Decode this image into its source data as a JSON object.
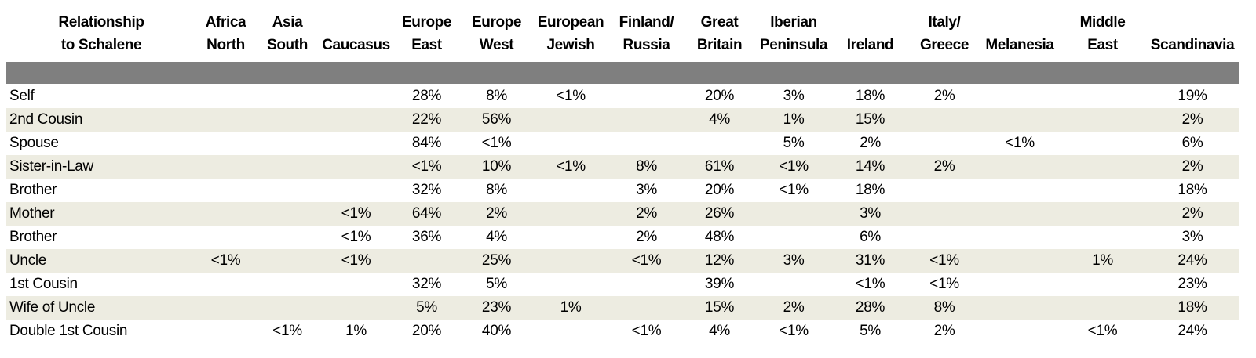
{
  "chart_data": {
    "type": "table",
    "title": "",
    "corner_header": [
      "Relationship",
      "to Schalene"
    ],
    "columns": [
      {
        "lines": [
          "Africa",
          "North"
        ]
      },
      {
        "lines": [
          "Asia",
          "South"
        ]
      },
      {
        "lines": [
          "Caucasus"
        ]
      },
      {
        "lines": [
          "Europe",
          "East"
        ]
      },
      {
        "lines": [
          "Europe",
          "West"
        ]
      },
      {
        "lines": [
          "European",
          "Jewish"
        ]
      },
      {
        "lines": [
          "Finland/",
          "Russia"
        ]
      },
      {
        "lines": [
          "Great",
          "Britain"
        ]
      },
      {
        "lines": [
          "Iberian",
          "Peninsula"
        ]
      },
      {
        "lines": [
          "Ireland"
        ]
      },
      {
        "lines": [
          "Italy/",
          "Greece"
        ]
      },
      {
        "lines": [
          "Melanesia"
        ]
      },
      {
        "lines": [
          "Middle",
          "East"
        ]
      },
      {
        "lines": [
          "Scandinavia"
        ]
      }
    ],
    "rows": [
      {
        "label": "Self",
        "values": [
          "",
          "",
          "",
          "28%",
          "8%",
          "<1%",
          "",
          "20%",
          "3%",
          "18%",
          "2%",
          "",
          "",
          "19%"
        ]
      },
      {
        "label": "2nd Cousin",
        "values": [
          "",
          "",
          "",
          "22%",
          "56%",
          "",
          "",
          "4%",
          "1%",
          "15%",
          "",
          "",
          "",
          "2%"
        ]
      },
      {
        "label": "Spouse",
        "values": [
          "",
          "",
          "",
          "84%",
          "<1%",
          "",
          "",
          "",
          "5%",
          "2%",
          "",
          "<1%",
          "",
          "6%"
        ]
      },
      {
        "label": "Sister-in-Law",
        "values": [
          "",
          "",
          "",
          "<1%",
          "10%",
          "<1%",
          "8%",
          "61%",
          "<1%",
          "14%",
          "2%",
          "",
          "",
          "2%"
        ]
      },
      {
        "label": "Brother",
        "values": [
          "",
          "",
          "",
          "32%",
          "8%",
          "",
          "3%",
          "20%",
          "<1%",
          "18%",
          "",
          "",
          "",
          "18%"
        ]
      },
      {
        "label": "Mother",
        "values": [
          "",
          "",
          "<1%",
          "64%",
          "2%",
          "",
          "2%",
          "26%",
          "",
          "3%",
          "",
          "",
          "",
          "2%"
        ]
      },
      {
        "label": "Brother",
        "values": [
          "",
          "",
          "<1%",
          "36%",
          "4%",
          "",
          "2%",
          "48%",
          "",
          "6%",
          "",
          "",
          "",
          "3%"
        ]
      },
      {
        "label": "Uncle",
        "values": [
          "<1%",
          "",
          "<1%",
          "",
          "25%",
          "",
          "<1%",
          "12%",
          "3%",
          "31%",
          "<1%",
          "",
          "1%",
          "24%"
        ]
      },
      {
        "label": "1st Cousin",
        "values": [
          "",
          "",
          "",
          "32%",
          "5%",
          "",
          "",
          "39%",
          "",
          "<1%",
          "<1%",
          "",
          "",
          "23%"
        ]
      },
      {
        "label": "Wife of Uncle",
        "values": [
          "",
          "",
          "",
          "5%",
          "23%",
          "1%",
          "",
          "15%",
          "2%",
          "28%",
          "8%",
          "",
          "",
          "18%"
        ]
      },
      {
        "label": "Double 1st Cousin",
        "values": [
          "",
          "<1%",
          "1%",
          "20%",
          "40%",
          "",
          "<1%",
          "4%",
          "<1%",
          "5%",
          "2%",
          "",
          "<1%",
          "24%"
        ]
      }
    ]
  },
  "colors": {
    "band": "#7f7f7f",
    "stripe": "#edece1",
    "text": "#000000",
    "background": "#ffffff"
  }
}
